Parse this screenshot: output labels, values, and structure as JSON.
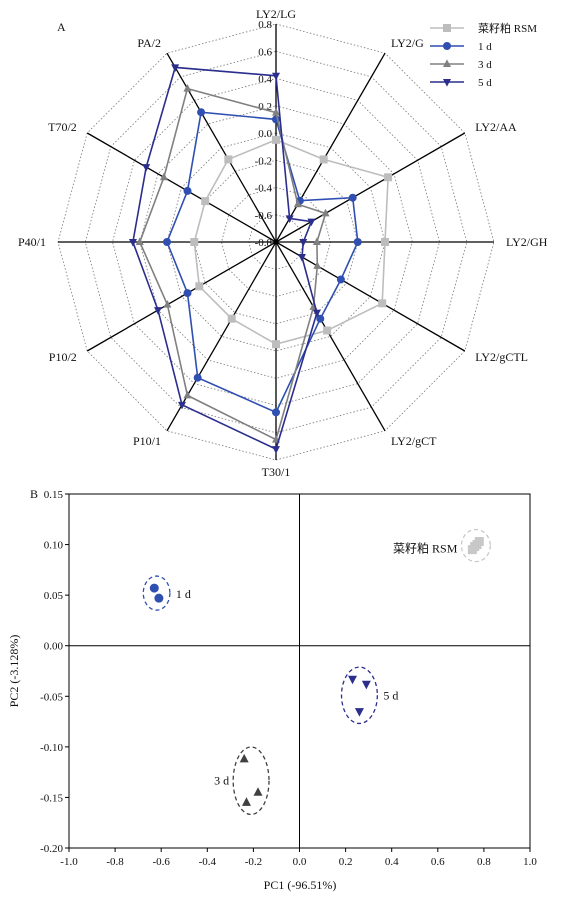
{
  "chart_data": [
    {
      "panel": "A",
      "type": "radar",
      "axes": [
        "LY2/LG",
        "LY2/G",
        "LY2/AA",
        "LY2/GH",
        "LY2/gCTL",
        "LY2/gCT",
        "T30/1",
        "P10/1",
        "P10/2",
        "P40/1",
        "T70/2",
        "PA/2"
      ],
      "rlim": [
        -0.8,
        0.8
      ],
      "rticks": [
        "0.8",
        "0.6",
        "0.4",
        "0.2",
        "0.0",
        "-0.2",
        "-0.4",
        "-0.6",
        "-0.8"
      ],
      "legend_position": "top-right",
      "series": [
        {
          "name": "菜籽粕 RSM",
          "color": "#bdbdbd",
          "marker": "square",
          "values": [
            -0.05,
            -0.1,
            0.15,
            0.0,
            0.1,
            -0.05,
            -0.05,
            -0.15,
            -0.15,
            -0.2,
            -0.2,
            -0.1
          ]
        },
        {
          "name": "1 d",
          "color": "#2f4fb1",
          "marker": "circle",
          "values": [
            0.1,
            -0.45,
            -0.15,
            -0.2,
            -0.25,
            -0.15,
            0.45,
            0.35,
            -0.05,
            0.0,
            -0.05,
            0.3
          ]
        },
        {
          "name": "3 d",
          "color": "#808080",
          "marker": "triangle-up",
          "values": [
            0.15,
            -0.48,
            -0.38,
            -0.5,
            -0.45,
            -0.25,
            0.65,
            0.5,
            0.12,
            0.2,
            0.15,
            0.5
          ]
        },
        {
          "name": "5 d",
          "color": "#2b2e8c",
          "marker": "triangle-down",
          "values": [
            0.42,
            -0.6,
            -0.5,
            -0.6,
            -0.58,
            -0.2,
            0.72,
            0.58,
            0.2,
            0.25,
            0.3,
            0.68
          ]
        }
      ]
    },
    {
      "panel": "B",
      "type": "scatter",
      "xlabel": "PC1 (-96.51%)",
      "ylabel": "PC2 (-3.128%)",
      "xlim": [
        -1.0,
        1.0
      ],
      "ylim": [
        -0.2,
        0.15
      ],
      "xticks": [
        "-1.0",
        "-0.8",
        "-0.6",
        "-0.4",
        "-0.2",
        "0.0",
        "0.2",
        "0.4",
        "0.6",
        "0.8",
        "1.0"
      ],
      "yticks": [
        "0.15",
        "0.10",
        "0.05",
        "0.00",
        "-0.05",
        "-0.10",
        "-0.15",
        "-0.20"
      ],
      "series": [
        {
          "name": "菜籽粕 RSM",
          "color": "#c8c8c8",
          "marker": "square",
          "points": [
            [
              0.75,
              0.095
            ],
            [
              0.77,
              0.1
            ],
            [
              0.76,
              0.098
            ],
            [
              0.78,
              0.103
            ]
          ]
        },
        {
          "name": "1 d",
          "color": "#2f4fb1",
          "marker": "circle",
          "points": [
            [
              -0.63,
              0.057
            ],
            [
              -0.61,
              0.047
            ]
          ]
        },
        {
          "name": "3 d",
          "color": "#404040",
          "marker": "triangle-up",
          "points": [
            [
              -0.24,
              -0.112
            ],
            [
              -0.18,
              -0.145
            ],
            [
              -0.23,
              -0.155
            ]
          ]
        },
        {
          "name": "5 d",
          "color": "#2b2e8c",
          "marker": "triangle-down",
          "points": [
            [
              0.23,
              -0.033
            ],
            [
              0.29,
              -0.038
            ],
            [
              0.26,
              -0.065
            ]
          ]
        }
      ]
    }
  ]
}
